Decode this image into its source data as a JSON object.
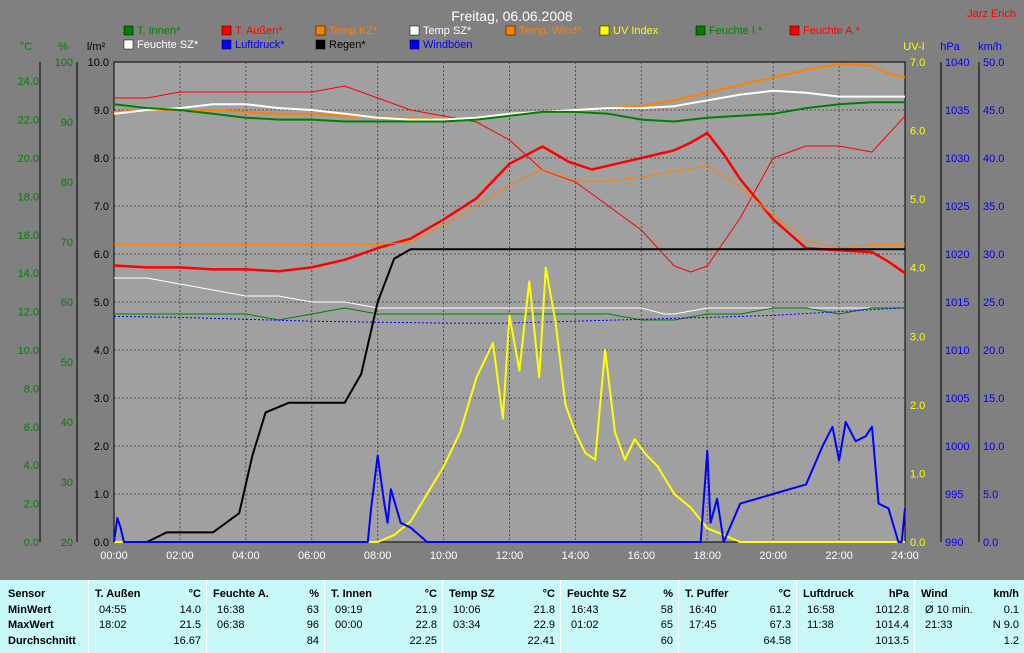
{
  "title": "Freitag, 06.06.2008",
  "author": "Jarz Erich",
  "legend": [
    {
      "label": "T. Innen*",
      "color": "#008000"
    },
    {
      "label": "T. Außen*",
      "color": "#ff0000"
    },
    {
      "label": "Temp KZ*",
      "color": "#ff8000"
    },
    {
      "label": "Temp SZ*",
      "color": "#ffffff"
    },
    {
      "label": "Temp. Wind*",
      "color": "#ff8000"
    },
    {
      "label": "UV Index",
      "color": "#ffff00"
    },
    {
      "label": "Feuchte I.*",
      "color": "#008000"
    },
    {
      "label": "Feuchte A.*",
      "color": "#ff0000"
    },
    {
      "label": "Feuchte SZ*",
      "color": "#ffffff"
    },
    {
      "label": "Luftdruck*",
      "color": "#0000ff"
    },
    {
      "label": "Regen*",
      "color": "#000000"
    },
    {
      "label": "Windböen",
      "color": "#0000ff"
    }
  ],
  "chart_data": {
    "type": "line",
    "x_ticks": [
      "00:00",
      "02:00",
      "04:00",
      "06:00",
      "08:00",
      "10:00",
      "12:00",
      "14:00",
      "16:00",
      "18:00",
      "20:00",
      "22:00",
      "24:00"
    ],
    "axes": {
      "celsius": {
        "unit": "°C",
        "color": "#008000",
        "ticks": [
          "0.0",
          "2.0",
          "4.0",
          "6.0",
          "8.0",
          "10.0",
          "12.0",
          "14.0",
          "16.0",
          "18.0",
          "20.0",
          "22.0",
          "24.0"
        ],
        "min": 0,
        "max": 25
      },
      "percent": {
        "unit": "%",
        "color": "#008000",
        "ticks": [
          "20",
          "30",
          "40",
          "50",
          "60",
          "70",
          "80",
          "90",
          "100"
        ],
        "min": 20,
        "max": 100
      },
      "rain": {
        "unit": "l/m²",
        "color": "#000000",
        "ticks": [
          "0.0",
          "1.0",
          "2.0",
          "3.0",
          "4.0",
          "5.0",
          "6.0",
          "7.0",
          "8.0",
          "9.0",
          "10.0"
        ],
        "min": 0,
        "max": 10
      },
      "uv": {
        "unit": "UV-I",
        "color": "#ffff00",
        "ticks": [
          "0.0",
          "1.0",
          "2.0",
          "3.0",
          "4.0",
          "5.0",
          "6.0",
          "7.0"
        ],
        "min": 0,
        "max": 7
      },
      "pressure": {
        "unit": "hPa",
        "color": "#0000ff",
        "ticks": [
          "990",
          "995",
          "1000",
          "1005",
          "1010",
          "1015",
          "1020",
          "1025",
          "1030",
          "1035",
          "1040"
        ],
        "min": 990,
        "max": 1040
      },
      "wind": {
        "unit": "km/h",
        "color": "#0000ff",
        "ticks": [
          "0.0",
          "5.0",
          "10.0",
          "15.0",
          "20.0",
          "25.0",
          "30.0",
          "35.0",
          "40.0",
          "45.0",
          "50.0"
        ],
        "min": 0,
        "max": 50
      }
    },
    "series": [
      {
        "name": "T. Außen*",
        "axis": "celsius",
        "color": "#ff0000",
        "width": 2.5,
        "x": [
          0,
          1,
          2,
          3,
          4,
          5,
          6,
          7,
          8,
          9,
          10,
          11,
          11.5,
          12,
          13,
          13.8,
          14.5,
          15,
          16,
          17,
          17.5,
          18,
          18.5,
          19,
          20,
          21,
          22,
          23,
          23.5,
          24
        ],
        "y": [
          14.4,
          14.3,
          14.3,
          14.2,
          14.2,
          14.1,
          14.3,
          14.7,
          15.3,
          15.8,
          16.8,
          17.9,
          18.8,
          19.7,
          20.6,
          19.8,
          19.4,
          19.6,
          20.0,
          20.4,
          20.8,
          21.3,
          20.2,
          18.9,
          16.8,
          15.3,
          15.2,
          15.1,
          14.6,
          14.0
        ]
      },
      {
        "name": "Feuchte A.*",
        "axis": "percent",
        "color": "#ff0000",
        "width": 1,
        "x": [
          0,
          1,
          2,
          3,
          4,
          5,
          6,
          7,
          8,
          9,
          10,
          11,
          12,
          13,
          14,
          15,
          16,
          17,
          17.5,
          18,
          19,
          20,
          21,
          22,
          23,
          23.5,
          24
        ],
        "y": [
          94,
          94,
          95,
          95,
          95,
          95,
          95,
          96,
          94,
          92,
          91,
          90,
          87,
          82,
          80,
          76,
          72,
          66,
          65,
          66,
          74,
          84,
          86,
          86,
          85,
          88,
          91
        ]
      },
      {
        "name": "Temp KZ*",
        "axis": "celsius",
        "color": "#ff8000",
        "width": 2,
        "x": [
          0,
          1,
          2,
          3,
          4,
          5,
          6,
          7,
          8,
          9,
          10,
          11,
          12,
          13,
          14,
          15,
          16,
          17,
          18,
          19,
          20,
          21,
          22,
          23,
          23.5,
          24
        ],
        "y": [
          22.4,
          22.5,
          22.5,
          22.5,
          22.4,
          22.3,
          22.3,
          22.2,
          22.1,
          22.1,
          22.0,
          22.0,
          22.2,
          22.4,
          22.5,
          22.6,
          22.7,
          23.0,
          23.4,
          23.8,
          24.2,
          24.6,
          24.9,
          24.8,
          24.4,
          24.2
        ]
      },
      {
        "name": "Temp. Wind*",
        "axis": "celsius",
        "color": "#ff8000",
        "width": 1,
        "x": [
          0,
          8,
          9,
          10,
          11,
          12,
          13,
          14,
          15,
          16,
          17,
          18,
          19,
          20,
          21,
          22,
          23,
          24
        ],
        "y": [
          15.5,
          15.5,
          15.6,
          16.5,
          17.5,
          18.6,
          19.4,
          18.8,
          18.8,
          19.0,
          19.3,
          19.6,
          18.5,
          17.0,
          15.7,
          15.3,
          15.5,
          15.5
        ]
      },
      {
        "name": "Temp SZ*",
        "axis": "celsius",
        "color": "#ffffff",
        "width": 2,
        "x": [
          0,
          1,
          2,
          3,
          4,
          5,
          6,
          7,
          8,
          9,
          10,
          11,
          12,
          13,
          14,
          15,
          16,
          17,
          18,
          19,
          20,
          21,
          22,
          23,
          24
        ],
        "y": [
          22.3,
          22.5,
          22.6,
          22.8,
          22.8,
          22.6,
          22.5,
          22.3,
          22.1,
          22.0,
          22.0,
          22.1,
          22.3,
          22.4,
          22.5,
          22.6,
          22.6,
          22.7,
          23.0,
          23.3,
          23.5,
          23.4,
          23.2,
          23.2,
          23.2
        ]
      },
      {
        "name": "T. Innen*",
        "axis": "celsius",
        "color": "#008000",
        "width": 2,
        "x": [
          0,
          1,
          2,
          3,
          4,
          5,
          6,
          7,
          8,
          9,
          10,
          11,
          12,
          13,
          14,
          15,
          16,
          17,
          18,
          19,
          20,
          21,
          22,
          23,
          24
        ],
        "y": [
          22.8,
          22.6,
          22.5,
          22.3,
          22.1,
          22.0,
          22.0,
          21.9,
          21.9,
          21.9,
          21.9,
          22.0,
          22.2,
          22.4,
          22.4,
          22.3,
          22.0,
          21.9,
          22.1,
          22.2,
          22.3,
          22.6,
          22.8,
          22.9,
          22.9
        ]
      },
      {
        "name": "Feuchte SZ*",
        "axis": "percent",
        "color": "#ffffff",
        "width": 1,
        "x": [
          0,
          1,
          2,
          3,
          4,
          5,
          6,
          7,
          8,
          9,
          10,
          11,
          12,
          13,
          14,
          15,
          16,
          16.7,
          17,
          18,
          19,
          20,
          21,
          22,
          23,
          24
        ],
        "y": [
          64,
          64,
          63,
          62,
          61,
          61,
          60,
          60,
          59,
          59,
          59,
          59,
          59,
          59,
          59,
          59,
          59,
          58,
          58,
          59,
          59,
          59,
          59,
          59,
          59,
          59
        ]
      },
      {
        "name": "Feuchte I.*",
        "axis": "percent",
        "color": "#008000",
        "width": 1,
        "x": [
          0,
          1,
          2,
          3,
          4,
          5,
          6,
          7,
          8,
          9,
          10,
          11,
          12,
          13,
          14,
          15,
          16,
          17,
          18,
          19,
          20,
          21,
          22,
          23,
          24
        ],
        "y": [
          58,
          58,
          58,
          58,
          58,
          57,
          58,
          59,
          58,
          58,
          58,
          58,
          58,
          58,
          58,
          58,
          57,
          57,
          58,
          58,
          59,
          59,
          58,
          59,
          59
        ]
      },
      {
        "name": "Luftdruck*",
        "axis": "pressure",
        "color": "#0000ff",
        "width": 1,
        "dash": "2,2",
        "x": [
          0,
          2,
          4,
          6,
          8,
          10,
          12,
          14,
          16,
          18,
          20,
          22,
          24
        ],
        "y": [
          1013.5,
          1013.4,
          1013.2,
          1013.0,
          1012.9,
          1012.8,
          1012.8,
          1013.0,
          1013.2,
          1013.4,
          1013.6,
          1014.0,
          1014.4
        ]
      },
      {
        "name": "Regen*",
        "axis": "rain",
        "color": "#000000",
        "width": 2,
        "x": [
          0,
          1,
          1.6,
          3,
          3.8,
          4.2,
          4.6,
          5.3,
          7,
          7.5,
          8,
          8.5,
          9,
          24
        ],
        "y": [
          0,
          0,
          0.2,
          0.2,
          0.6,
          1.8,
          2.7,
          2.9,
          2.9,
          3.5,
          5.0,
          5.9,
          6.1,
          6.1
        ]
      },
      {
        "name": "UV Index",
        "axis": "uv",
        "color": "#ffff00",
        "width": 2,
        "x": [
          0,
          8,
          8.5,
          9,
          9.5,
          10,
          10.5,
          11,
          11.5,
          11.8,
          12,
          12.3,
          12.6,
          12.9,
          13.1,
          13.4,
          13.7,
          14,
          14.3,
          14.6,
          14.9,
          15.2,
          15.5,
          15.8,
          16.1,
          16.5,
          17,
          17.5,
          18,
          18.5,
          19,
          24
        ],
        "y": [
          0,
          0,
          0.1,
          0.3,
          0.7,
          1.1,
          1.6,
          2.4,
          2.9,
          1.8,
          3.3,
          2.5,
          3.8,
          2.4,
          4.0,
          3.2,
          2.0,
          1.6,
          1.3,
          1.2,
          2.8,
          1.6,
          1.2,
          1.5,
          1.3,
          1.1,
          0.7,
          0.5,
          0.2,
          0.1,
          0.0,
          0.0
        ]
      },
      {
        "name": "Windböen",
        "axis": "wind",
        "color": "#0000ff",
        "width": 2,
        "x": [
          0,
          0.1,
          0.2,
          0.3,
          7.7,
          7.8,
          8.0,
          8.2,
          8.3,
          8.4,
          8.7,
          9.0,
          9.5,
          17.8,
          18.0,
          18.1,
          18.3,
          18.5,
          19,
          19.5,
          20,
          20.5,
          21,
          21.5,
          21.8,
          22,
          22.2,
          22.5,
          22.8,
          23.0,
          23.2,
          23.5,
          23.8,
          23.9,
          24
        ],
        "y": [
          0,
          2.5,
          1.5,
          0,
          0,
          3.5,
          9.0,
          4.0,
          2.0,
          5.5,
          2.0,
          1.5,
          0,
          0,
          9.5,
          2.0,
          4.5,
          0,
          4.0,
          4.5,
          5.0,
          5.5,
          6.0,
          10.0,
          12.0,
          8.5,
          12.5,
          10.5,
          11.0,
          12.0,
          4.0,
          3.5,
          0,
          0,
          3.5
        ]
      }
    ]
  },
  "stats": {
    "row_labels": [
      "Sensor",
      "MinWert",
      "MaxWert",
      "Durchschnitt"
    ],
    "columns": [
      {
        "name": "T. Außen",
        "unit": "°C",
        "min_time": "04:55",
        "min": "14.0",
        "max_time": "18:02",
        "max": "21.5",
        "avg": "16.67"
      },
      {
        "name": "Feuchte A.",
        "unit": "%",
        "min_time": "16:38",
        "min": "63",
        "max_time": "06:38",
        "max": "96",
        "avg": "84"
      },
      {
        "name": "T. Innen",
        "unit": "°C",
        "min_time": "09:19",
        "min": "21.9",
        "max_time": "00:00",
        "max": "22.8",
        "avg": "22.25"
      },
      {
        "name": "Temp SZ",
        "unit": "°C",
        "min_time": "10:06",
        "min": "21.8",
        "max_time": "03:34",
        "max": "22.9",
        "avg": "22.41"
      },
      {
        "name": "Feuchte SZ",
        "unit": "%",
        "min_time": "16:43",
        "min": "58",
        "max_time": "01:02",
        "max": "65",
        "avg": "60"
      },
      {
        "name": "T. Puffer",
        "unit": "°C",
        "min_time": "16:40",
        "min": "61.2",
        "max_time": "17:45",
        "max": "67.3",
        "avg": "64.58"
      },
      {
        "name": "Luftdruck",
        "unit": "hPa",
        "min_time": "16:58",
        "min": "1012.8",
        "max_time": "11:38",
        "max": "1014.4",
        "avg": "1013.5"
      },
      {
        "name": "Wind",
        "unit": "km/h",
        "min_time": "Ø 10 min.",
        "min": "0.1",
        "max_time": "21:33",
        "max": "N 9.0",
        "avg": "1.2"
      }
    ]
  }
}
